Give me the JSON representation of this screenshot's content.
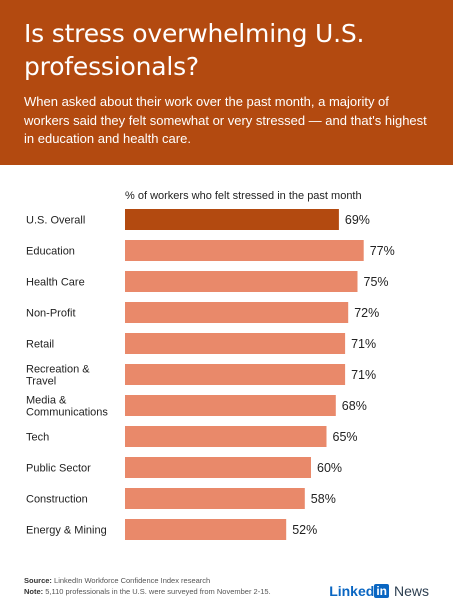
{
  "header": {
    "title": "Is stress overwhelming U.S. professionals?",
    "subtitle": "When asked about their work over the past month, a majority of workers said they felt somewhat or very stressed — and that's highest in education and health care."
  },
  "chart_data": {
    "type": "bar",
    "orientation": "horizontal",
    "title": "% of workers who felt stressed in the past month",
    "categories": [
      "U.S. Overall",
      "Education",
      "Health Care",
      "Non-Profit",
      "Retail",
      "Recreation & Travel",
      "Media & Communications",
      "Tech",
      "Public Sector",
      "Construction",
      "Energy & Mining"
    ],
    "category_lines": [
      [
        "U.S. Overall"
      ],
      [
        "Education"
      ],
      [
        "Health Care"
      ],
      [
        "Non-Profit"
      ],
      [
        "Retail"
      ],
      [
        "Recreation &",
        "Travel"
      ],
      [
        "Media &",
        "Communications"
      ],
      [
        "Tech"
      ],
      [
        "Public Sector"
      ],
      [
        "Construction"
      ],
      [
        "Energy & Mining"
      ]
    ],
    "values": [
      69,
      77,
      75,
      72,
      71,
      71,
      68,
      65,
      60,
      58,
      52
    ],
    "value_labels": [
      "69%",
      "77%",
      "75%",
      "72%",
      "71%",
      "71%",
      "68%",
      "65%",
      "60%",
      "58%",
      "52%"
    ],
    "xlim": [
      0,
      100
    ],
    "grid": false,
    "colors": {
      "highlight": "#b34a10",
      "bar": "#e9896a"
    }
  },
  "footer": {
    "source_label": "Source:",
    "source_text": "LinkedIn Workforce Confidence Index research",
    "note_label": "Note:",
    "note_text": "5,110 professionals in the U.S. were surveyed from November 2-15.",
    "brand_linked": "Linked",
    "brand_in": "in",
    "brand_news": "News"
  },
  "colors": {
    "header_bg": "#b34a10",
    "brand_blue": "#0a66c2"
  }
}
